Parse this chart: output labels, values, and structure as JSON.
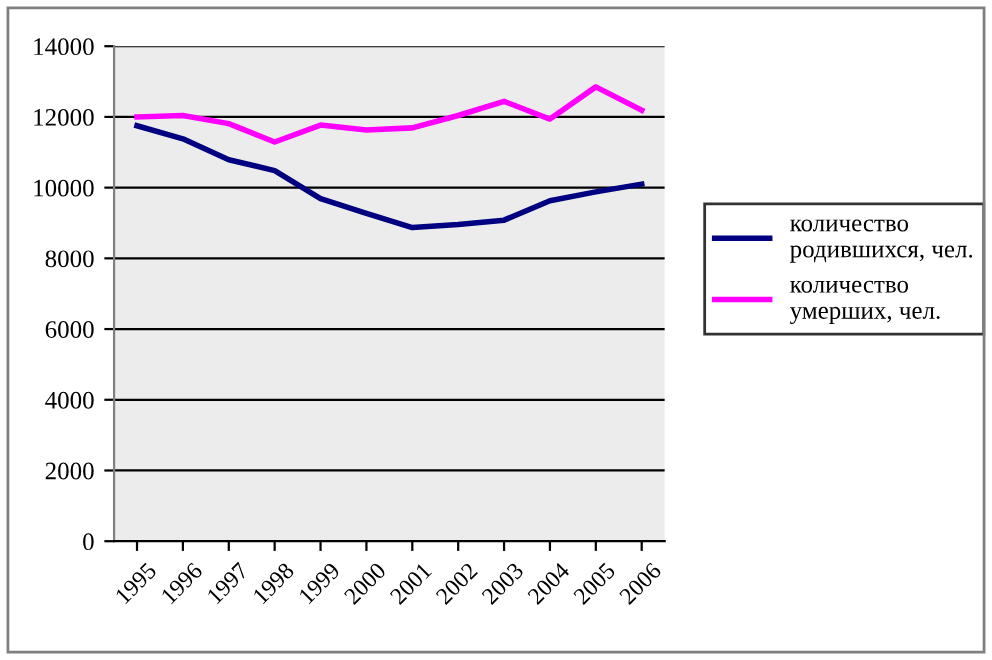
{
  "chart_data": {
    "type": "line",
    "categories": [
      "1995",
      "1996",
      "1997",
      "1998",
      "1999",
      "2000",
      "2001",
      "2002",
      "2003",
      "2004",
      "2005",
      "2006"
    ],
    "series": [
      {
        "name": "количество родившихся, чел.",
        "color": "#000080",
        "values": [
          11750,
          11380,
          10790,
          10480,
          9690,
          9270,
          8870,
          8960,
          9080,
          9630,
          9880,
          10100
        ]
      },
      {
        "name": "количество умерших, чел.",
        "color": "#ff00ff",
        "values": [
          12000,
          12040,
          11810,
          11290,
          11770,
          11630,
          11690,
          12040,
          12440,
          11940,
          12850,
          12190
        ]
      }
    ],
    "ylim": [
      0,
      14000
    ],
    "yticks": [
      0,
      2000,
      4000,
      6000,
      8000,
      10000,
      12000,
      14000
    ],
    "grid": "y",
    "legend": "right",
    "marker": "none",
    "line_style": "solid"
  }
}
